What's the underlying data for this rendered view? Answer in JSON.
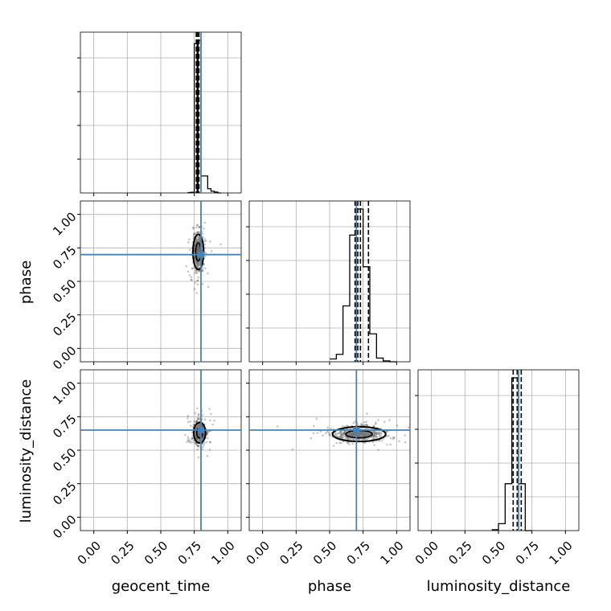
{
  "chart_data": {
    "type": "corner",
    "parameters": [
      "geocent_time",
      "phase",
      "luminosity_distance"
    ],
    "truths": [
      0.8,
      0.7,
      0.65
    ],
    "axis_range": [
      -0.1,
      1.1
    ],
    "ticks": [
      0.0,
      0.25,
      0.5,
      0.75,
      1.0
    ],
    "tick_labels": [
      "0.00",
      "0.25",
      "0.50",
      "0.75",
      "1.00"
    ],
    "grid": true,
    "colors": {
      "truth": "#4682b4",
      "hist": "#000000",
      "points": "#000000"
    },
    "histograms": [
      {
        "parameter": "geocent_time",
        "bin_edges": [
          0.7,
          0.725,
          0.75,
          0.775,
          0.8,
          0.825,
          0.85,
          0.875,
          0.9,
          0.925,
          0.95
        ],
        "counts": [
          0.2,
          0.4,
          88,
          90,
          10,
          10,
          2.5,
          1,
          0.5,
          0
        ],
        "quantile_lines": [
          0.765,
          0.775,
          0.785
        ],
        "dashed_region": [
          0.767,
          0.783
        ]
      },
      {
        "parameter": "phase",
        "bin_edges": [
          0.5,
          0.55,
          0.6,
          0.65,
          0.7,
          0.75,
          0.8,
          0.85,
          0.9,
          0.95,
          1.0
        ],
        "counts": [
          1.5,
          4,
          30,
          68,
          82,
          51,
          15,
          2,
          0.5,
          0
        ],
        "quantile_lines": [
          0.69,
          0.71,
          0.73,
          0.79
        ]
      },
      {
        "parameter": "luminosity_distance",
        "bin_edges": [
          0.45,
          0.5,
          0.55,
          0.6,
          0.65,
          0.7,
          0.75
        ],
        "counts": [
          0.5,
          4,
          27,
          88,
          27,
          0
        ],
        "quantile_lines": [
          0.61,
          0.64,
          0.67
        ]
      }
    ],
    "scatter_panels": [
      {
        "x": "geocent_time",
        "y": "phase",
        "center": [
          0.78,
          0.72
        ],
        "spread": [
          0.018,
          0.06
        ]
      },
      {
        "x": "geocent_time",
        "y": "luminosity_distance",
        "center": [
          0.79,
          0.63
        ],
        "spread": [
          0.02,
          0.035
        ]
      },
      {
        "x": "phase",
        "y": "luminosity_distance",
        "center": [
          0.72,
          0.62
        ],
        "spread": [
          0.09,
          0.025
        ]
      }
    ]
  }
}
